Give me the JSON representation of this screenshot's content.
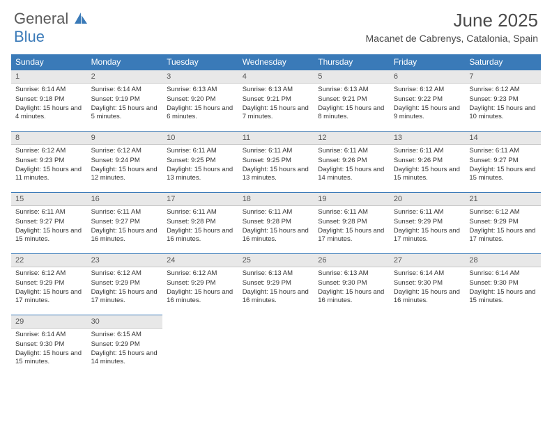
{
  "logo": {
    "line1": "General",
    "line2": "Blue"
  },
  "header": {
    "month_title": "June 2025",
    "location": "Macanet de Cabrenys, Catalonia, Spain"
  },
  "colors": {
    "header_blue": "#3a7ab8",
    "cell_header_bg": "#e8e8e8",
    "text": "#333333"
  },
  "weekdays": [
    "Sunday",
    "Monday",
    "Tuesday",
    "Wednesday",
    "Thursday",
    "Friday",
    "Saturday"
  ],
  "days": [
    {
      "n": "1",
      "sr": "6:14 AM",
      "ss": "9:18 PM",
      "dl": "15 hours and 4 minutes."
    },
    {
      "n": "2",
      "sr": "6:14 AM",
      "ss": "9:19 PM",
      "dl": "15 hours and 5 minutes."
    },
    {
      "n": "3",
      "sr": "6:13 AM",
      "ss": "9:20 PM",
      "dl": "15 hours and 6 minutes."
    },
    {
      "n": "4",
      "sr": "6:13 AM",
      "ss": "9:21 PM",
      "dl": "15 hours and 7 minutes."
    },
    {
      "n": "5",
      "sr": "6:13 AM",
      "ss": "9:21 PM",
      "dl": "15 hours and 8 minutes."
    },
    {
      "n": "6",
      "sr": "6:12 AM",
      "ss": "9:22 PM",
      "dl": "15 hours and 9 minutes."
    },
    {
      "n": "7",
      "sr": "6:12 AM",
      "ss": "9:23 PM",
      "dl": "15 hours and 10 minutes."
    },
    {
      "n": "8",
      "sr": "6:12 AM",
      "ss": "9:23 PM",
      "dl": "15 hours and 11 minutes."
    },
    {
      "n": "9",
      "sr": "6:12 AM",
      "ss": "9:24 PM",
      "dl": "15 hours and 12 minutes."
    },
    {
      "n": "10",
      "sr": "6:11 AM",
      "ss": "9:25 PM",
      "dl": "15 hours and 13 minutes."
    },
    {
      "n": "11",
      "sr": "6:11 AM",
      "ss": "9:25 PM",
      "dl": "15 hours and 13 minutes."
    },
    {
      "n": "12",
      "sr": "6:11 AM",
      "ss": "9:26 PM",
      "dl": "15 hours and 14 minutes."
    },
    {
      "n": "13",
      "sr": "6:11 AM",
      "ss": "9:26 PM",
      "dl": "15 hours and 15 minutes."
    },
    {
      "n": "14",
      "sr": "6:11 AM",
      "ss": "9:27 PM",
      "dl": "15 hours and 15 minutes."
    },
    {
      "n": "15",
      "sr": "6:11 AM",
      "ss": "9:27 PM",
      "dl": "15 hours and 15 minutes."
    },
    {
      "n": "16",
      "sr": "6:11 AM",
      "ss": "9:27 PM",
      "dl": "15 hours and 16 minutes."
    },
    {
      "n": "17",
      "sr": "6:11 AM",
      "ss": "9:28 PM",
      "dl": "15 hours and 16 minutes."
    },
    {
      "n": "18",
      "sr": "6:11 AM",
      "ss": "9:28 PM",
      "dl": "15 hours and 16 minutes."
    },
    {
      "n": "19",
      "sr": "6:11 AM",
      "ss": "9:28 PM",
      "dl": "15 hours and 17 minutes."
    },
    {
      "n": "20",
      "sr": "6:11 AM",
      "ss": "9:29 PM",
      "dl": "15 hours and 17 minutes."
    },
    {
      "n": "21",
      "sr": "6:12 AM",
      "ss": "9:29 PM",
      "dl": "15 hours and 17 minutes."
    },
    {
      "n": "22",
      "sr": "6:12 AM",
      "ss": "9:29 PM",
      "dl": "15 hours and 17 minutes."
    },
    {
      "n": "23",
      "sr": "6:12 AM",
      "ss": "9:29 PM",
      "dl": "15 hours and 17 minutes."
    },
    {
      "n": "24",
      "sr": "6:12 AM",
      "ss": "9:29 PM",
      "dl": "15 hours and 16 minutes."
    },
    {
      "n": "25",
      "sr": "6:13 AM",
      "ss": "9:29 PM",
      "dl": "15 hours and 16 minutes."
    },
    {
      "n": "26",
      "sr": "6:13 AM",
      "ss": "9:30 PM",
      "dl": "15 hours and 16 minutes."
    },
    {
      "n": "27",
      "sr": "6:14 AM",
      "ss": "9:30 PM",
      "dl": "15 hours and 16 minutes."
    },
    {
      "n": "28",
      "sr": "6:14 AM",
      "ss": "9:30 PM",
      "dl": "15 hours and 15 minutes."
    },
    {
      "n": "29",
      "sr": "6:14 AM",
      "ss": "9:30 PM",
      "dl": "15 hours and 15 minutes."
    },
    {
      "n": "30",
      "sr": "6:15 AM",
      "ss": "9:29 PM",
      "dl": "15 hours and 14 minutes."
    }
  ],
  "labels": {
    "sunrise": "Sunrise:",
    "sunset": "Sunset:",
    "daylight": "Daylight:"
  }
}
